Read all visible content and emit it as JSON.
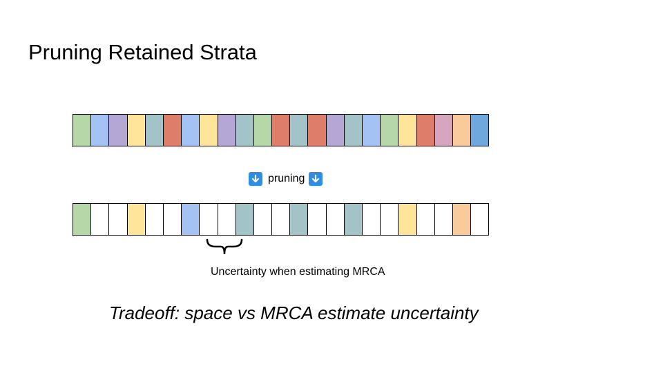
{
  "title": "Pruning Retained Strata",
  "strata_full": [
    "#b6d7a8",
    "#a4c2f4",
    "#b4a7d6",
    "#ffe599",
    "#a2c4c9",
    "#dd7e6b",
    "#a4c2f4",
    "#ffe599",
    "#b4a7d6",
    "#a2c4c9",
    "#b6d7a8",
    "#dd7e6b",
    "#a2c4c9",
    "#dd7e6b",
    "#b4a7d6",
    "#a2c4c9",
    "#a4c2f4",
    "#b6d7a8",
    "#ffe599",
    "#dd7e6b",
    "#d5a6bd",
    "#f9cb9c",
    "#6fa8dc"
  ],
  "strata_pruned": [
    "#b6d7a8",
    "#ffffff",
    "#ffffff",
    "#ffe599",
    "#ffffff",
    "#ffffff",
    "#a4c2f4",
    "#ffffff",
    "#ffffff",
    "#a2c4c9",
    "#ffffff",
    "#ffffff",
    "#a2c4c9",
    "#ffffff",
    "#ffffff",
    "#a2c4c9",
    "#ffffff",
    "#ffffff",
    "#ffe599",
    "#ffffff",
    "#ffffff",
    "#f9cb9c",
    "#ffffff"
  ],
  "pruning_label": "pruning",
  "arrow_icon": "down-arrow-icon",
  "uncertainty_label": "Uncertainty when estimating MRCA",
  "tradeoff": "Tradeoff: space vs MRCA estimate uncertainty"
}
